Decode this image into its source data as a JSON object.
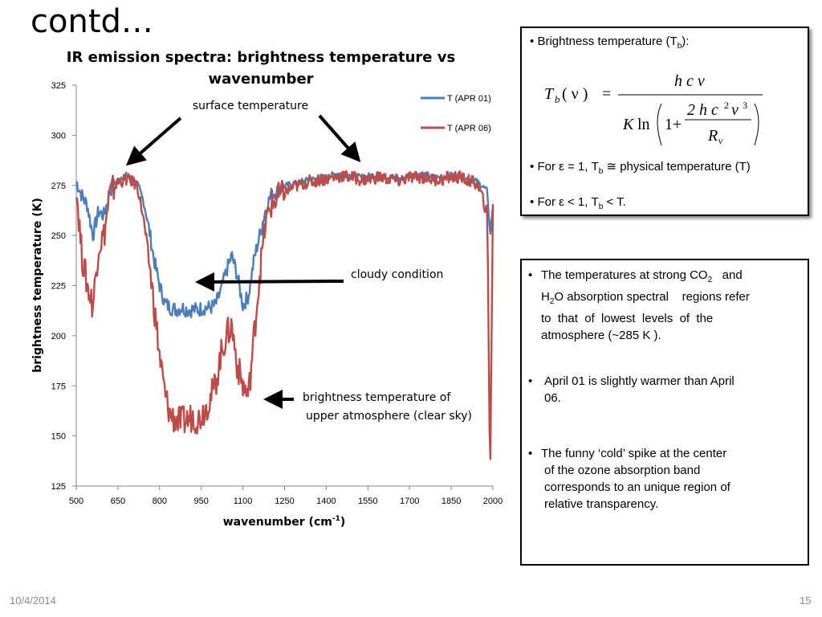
{
  "slide": {
    "title": "contd…",
    "date": "10/4/2014",
    "page_number": "15"
  },
  "chart_title_line1": "IR  emission spectra:  brightness temperature vs",
  "chart_title_line2": "wavenumber",
  "axes": {
    "ylabel": "brightness  temperature (K)",
    "xlabel_main": "wavenumber (cm",
    "xlabel_sup": "-1",
    "xlabel_close": ")"
  },
  "annotations": {
    "surface": "surface temperature",
    "cloudy": "cloudy condition",
    "upper_line1": "brightness temperature of",
    "upper_line2": "upper atmosphere (clear sky)"
  },
  "legend": {
    "apr01": "T (APR 01)",
    "apr06": "T (APR 06)"
  },
  "colors": {
    "apr01": "#4a7ebb",
    "apr06": "#be4b48",
    "axis": "#868686"
  },
  "chart_data": {
    "type": "line",
    "xlim": [
      500,
      2000
    ],
    "ylim": [
      125,
      325
    ],
    "x_ticks": [
      500,
      650,
      800,
      950,
      1100,
      1250,
      1400,
      1550,
      1700,
      1850,
      2000
    ],
    "y_ticks": [
      125,
      150,
      175,
      200,
      225,
      250,
      275,
      300,
      325
    ],
    "grid": false,
    "legend_position": "top-right",
    "x": [
      500,
      520,
      540,
      560,
      580,
      600,
      620,
      640,
      660,
      680,
      700,
      720,
      740,
      760,
      780,
      800,
      820,
      840,
      860,
      880,
      900,
      920,
      940,
      960,
      980,
      1000,
      1020,
      1040,
      1060,
      1080,
      1100,
      1120,
      1140,
      1160,
      1180,
      1200,
      1220,
      1240,
      1260,
      1280,
      1300,
      1320,
      1340,
      1360,
      1380,
      1400,
      1420,
      1440,
      1460,
      1480,
      1500,
      1520,
      1540,
      1560,
      1580,
      1600,
      1620,
      1640,
      1660,
      1680,
      1700,
      1720,
      1740,
      1760,
      1780,
      1800,
      1820,
      1840,
      1860,
      1880,
      1900,
      1920,
      1940,
      1960,
      1980,
      1990,
      2000
    ],
    "series": [
      {
        "name": "T (APR 01)",
        "values": [
          277,
          270,
          265,
          250,
          262,
          260,
          272,
          276,
          279,
          280,
          278,
          276,
          268,
          255,
          238,
          225,
          216,
          214,
          213,
          214,
          213,
          213,
          213,
          214,
          214,
          215,
          222,
          232,
          240,
          230,
          215,
          220,
          238,
          250,
          262,
          270,
          272,
          274,
          275,
          276,
          276,
          277,
          278,
          278,
          279,
          279,
          280,
          281,
          281,
          280,
          280,
          279,
          279,
          280,
          280,
          280,
          279,
          279,
          278,
          279,
          280,
          280,
          281,
          280,
          279,
          279,
          279,
          280,
          280,
          280,
          279,
          278,
          277,
          275,
          272,
          250,
          265
        ]
      },
      {
        "name": "T (APR 06)",
        "values": [
          275,
          240,
          225,
          215,
          245,
          250,
          270,
          275,
          277,
          278,
          277,
          275,
          260,
          240,
          215,
          190,
          170,
          160,
          158,
          157,
          158,
          160,
          158,
          163,
          168,
          175,
          190,
          200,
          205,
          185,
          175,
          170,
          200,
          230,
          255,
          265,
          268,
          270,
          272,
          274,
          275,
          276,
          277,
          277,
          278,
          278,
          279,
          279,
          280,
          279,
          279,
          278,
          278,
          278,
          279,
          279,
          278,
          278,
          277,
          278,
          279,
          279,
          279,
          279,
          278,
          278,
          278,
          279,
          279,
          279,
          278,
          277,
          276,
          270,
          260,
          127,
          265
        ]
      }
    ]
  },
  "panel1": {
    "bullet1_pre": "Brightness temperature (T",
    "bullet1_sub": "b",
    "bullet1_post": "):",
    "formula": {
      "lhs_T": "T",
      "lhs_sub": "b",
      "lhs_arg": "( ν )",
      "equals": "=",
      "numerator": "h c ν",
      "den_K": "K",
      "den_ln": "ln",
      "den_one_plus": "1+",
      "inner_num": "2 h c",
      "inner_num_sup1": "2",
      "inner_nu": "ν",
      "inner_num_sup2": "3",
      "inner_den": "R",
      "inner_den_sub": "ν"
    },
    "bullet2_pre": "For ε = 1, T",
    "bullet2_sub": "b",
    "bullet2_post": " ≅ physical temperature (T)",
    "bullet3_pre": "For ε < 1, T",
    "bullet3_sub": "b",
    "bullet3_post": " < T."
  },
  "panel2": {
    "b1_l1_pre": "The temperatures at strong CO",
    "b1_l1_sub": "2",
    "b1_l1_post": "   and",
    "b1_l2_pre": "H",
    "b1_l2_sub": "2",
    "b1_l2_post": "O absorption spectral    regions refer",
    "b1_l3": "to  that  of  lowest  levels  of  the",
    "b1_l4": "atmosphere (~285 K ).",
    "b2_l1": "April 01 is slightly warmer than April",
    "b2_l2": "06.",
    "b3_l1": "The funny ‘cold’ spike at the center",
    "b3_l2": "of the ozone absorption band",
    "b3_l3": "corresponds to an unique region of",
    "b3_l4": "relative transparency."
  },
  "bullet_char": "•"
}
